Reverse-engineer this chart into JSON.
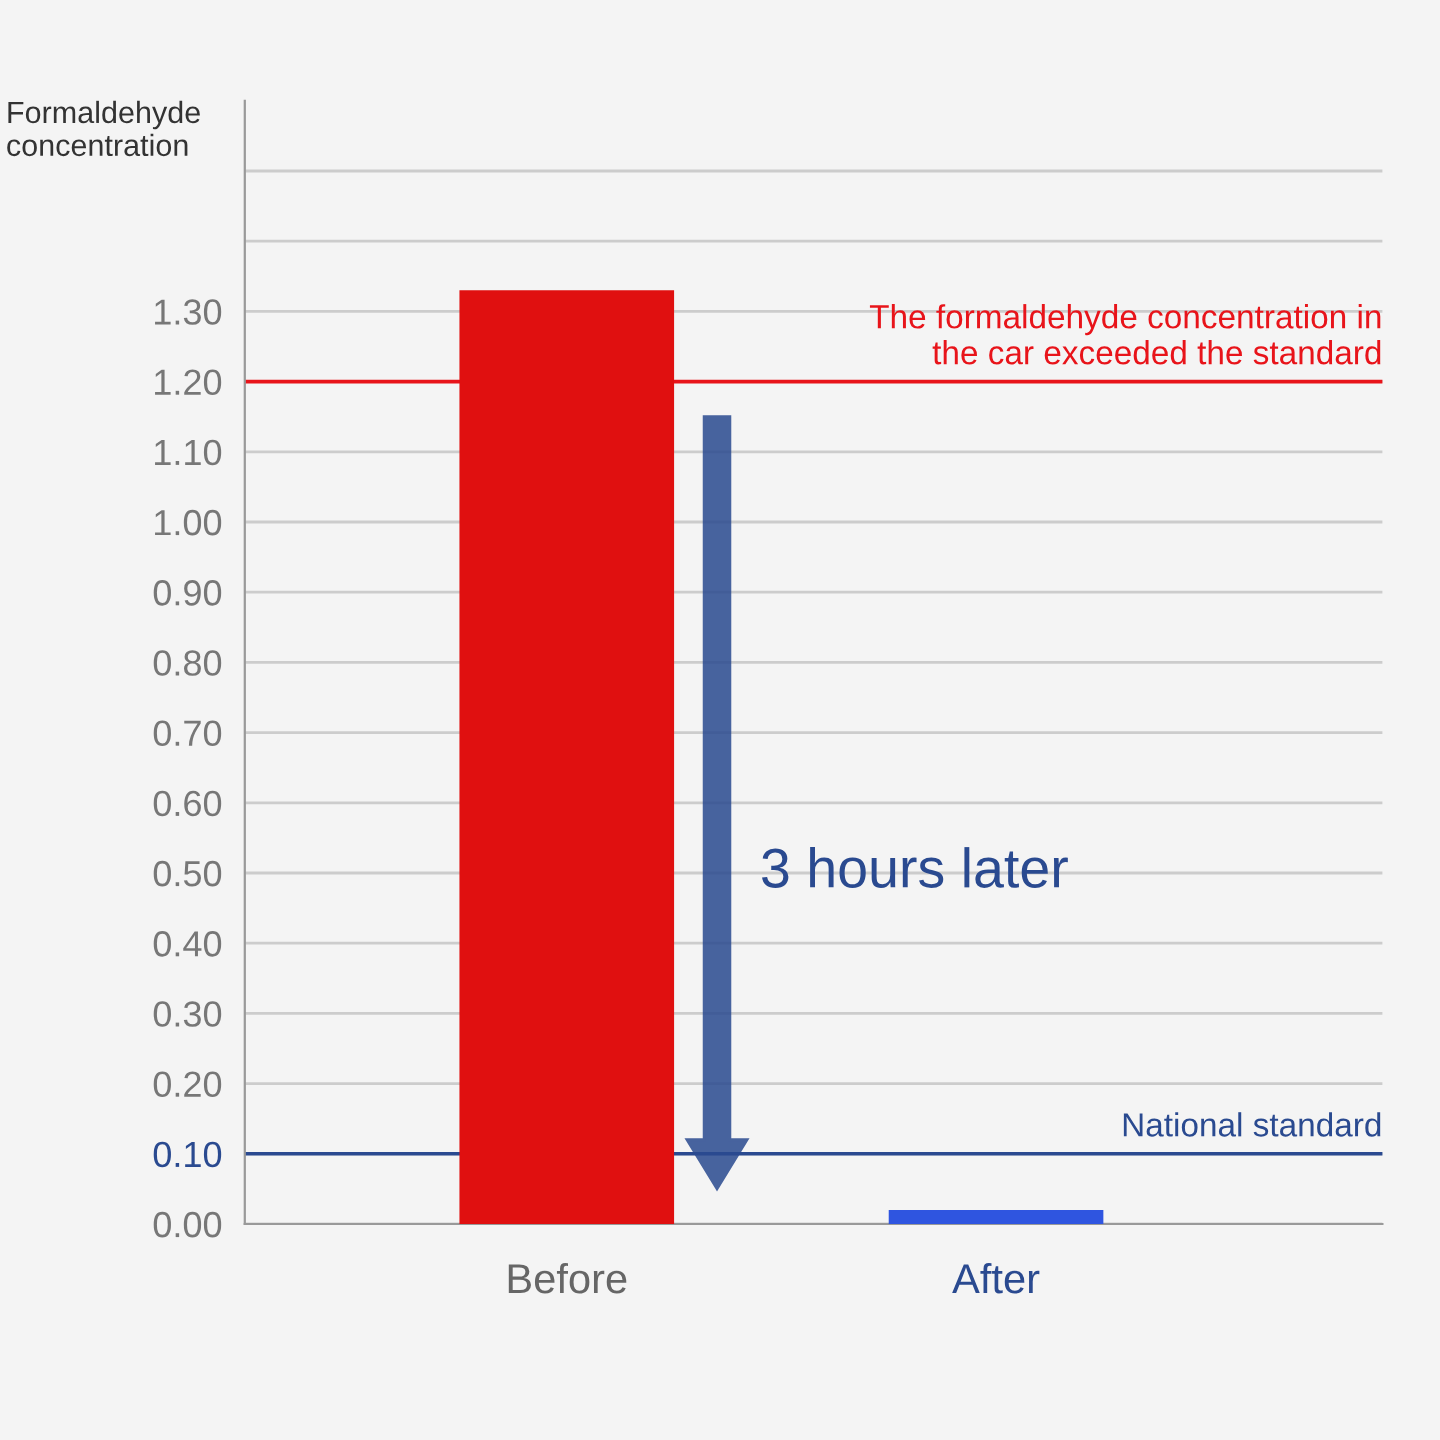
{
  "chart_data": {
    "type": "bar",
    "ylabel": "Formaldehyde concentration",
    "categories": [
      "Before",
      "After"
    ],
    "values": [
      1.33,
      0.02
    ],
    "colors": [
      "#e01010",
      "#2f55e0"
    ],
    "ylim": [
      0,
      1.6
    ],
    "yticks": [
      {
        "value": 0,
        "label": "0.00"
      },
      {
        "value": 0.1,
        "label": "0.10"
      },
      {
        "value": 0.2,
        "label": "0.20"
      },
      {
        "value": 0.3,
        "label": "0.30"
      },
      {
        "value": 0.4,
        "label": "0.40"
      },
      {
        "value": 0.5,
        "label": "0.50"
      },
      {
        "value": 0.6,
        "label": "0.60"
      },
      {
        "value": 0.7,
        "label": "0.70"
      },
      {
        "value": 0.8,
        "label": "0.80"
      },
      {
        "value": 0.9,
        "label": "0.90"
      },
      {
        "value": 1.0,
        "label": "1.00"
      },
      {
        "value": 1.1,
        "label": "1.10"
      },
      {
        "value": 1.2,
        "label": "1.20"
      },
      {
        "value": 1.3,
        "label": "1.30"
      },
      {
        "value": 1.4,
        "label": null
      },
      {
        "value": 1.5,
        "label": null
      }
    ],
    "grid": "y",
    "ref_lines": [
      {
        "axis": "y",
        "value": 1.2,
        "label": "The formaldehyde concentration in\nthe car exceeded the standard",
        "color": "#e8141a"
      },
      {
        "axis": "y",
        "value": 0.1,
        "label": "National standard",
        "color": "#2a4a90"
      }
    ],
    "annotations": [
      "3 hours later"
    ]
  }
}
